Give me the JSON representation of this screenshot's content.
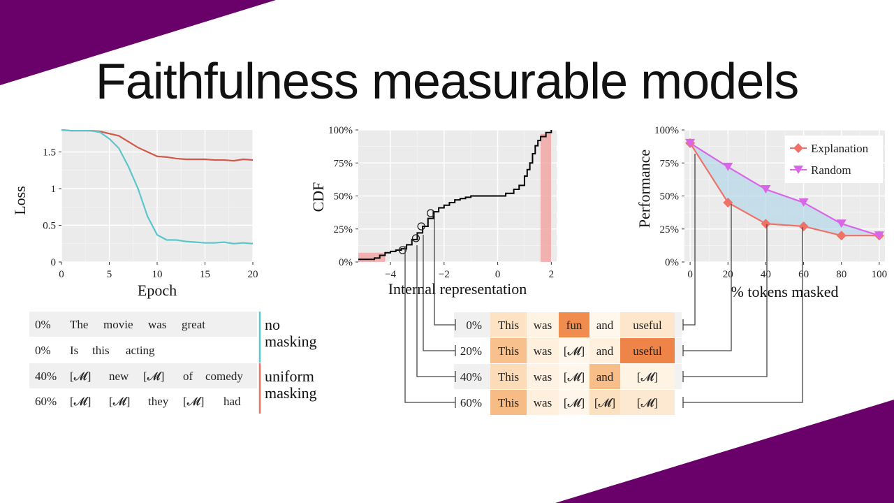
{
  "slide": {
    "title": "Faithfulness measurable models",
    "accent_color": "#6a006a"
  },
  "chart_data": [
    {
      "type": "line",
      "xlabel": "Epoch",
      "ylabel": "Loss",
      "xlim": [
        0,
        20
      ],
      "ylim": [
        0,
        1.8
      ],
      "xticks": [
        0,
        5,
        10,
        15,
        20
      ],
      "yticks": [
        {
          "v": 0,
          "label": "0"
        },
        {
          "v": 0.5,
          "label": "0.5"
        },
        {
          "v": 1,
          "label": "1"
        },
        {
          "v": 1.5,
          "label": "1.5"
        }
      ],
      "grid": true,
      "series": [
        {
          "color": "#d1584a",
          "x": [
            0,
            1,
            2,
            3,
            4,
            5,
            6,
            7,
            8,
            9,
            10,
            11,
            12,
            13,
            14,
            15,
            16,
            17,
            18,
            19,
            20
          ],
          "values": [
            1.8,
            1.79,
            1.79,
            1.79,
            1.78,
            1.75,
            1.72,
            1.64,
            1.56,
            1.5,
            1.44,
            1.43,
            1.41,
            1.4,
            1.4,
            1.4,
            1.39,
            1.39,
            1.38,
            1.4,
            1.39
          ]
        },
        {
          "color": "#5bc6cc",
          "x": [
            0,
            1,
            2,
            3,
            4,
            5,
            6,
            7,
            8,
            9,
            10,
            11,
            12,
            13,
            14,
            15,
            16,
            17,
            18,
            19,
            20
          ],
          "values": [
            1.8,
            1.79,
            1.79,
            1.79,
            1.77,
            1.68,
            1.55,
            1.3,
            1.0,
            0.62,
            0.37,
            0.3,
            0.3,
            0.28,
            0.27,
            0.26,
            0.26,
            0.27,
            0.25,
            0.26,
            0.25
          ]
        }
      ]
    },
    {
      "type": "line",
      "xlabel": "Internal representation",
      "ylabel": "CDF",
      "xlim": [
        -5.2,
        2.2
      ],
      "ylim": [
        0,
        1
      ],
      "xticks": [
        {
          "v": -4,
          "label": "−4"
        },
        {
          "v": -2,
          "label": "−2"
        },
        {
          "v": 0,
          "label": "0"
        },
        {
          "v": 2,
          "label": "2"
        }
      ],
      "yticks": [
        {
          "v": 0,
          "label": "0%"
        },
        {
          "v": 0.25,
          "label": "25%"
        },
        {
          "v": 0.5,
          "label": "50%"
        },
        {
          "v": 0.75,
          "label": "75%"
        },
        {
          "v": 1,
          "label": "100%"
        }
      ],
      "grid": true,
      "shaded_regions": [
        {
          "from": -5.2,
          "to": -4.2,
          "color": "#f4a3a3"
        },
        {
          "from": 1.6,
          "to": 2.0,
          "color": "#f4a3a3"
        }
      ],
      "series": [
        {
          "color": "#000000",
          "x": [
            -5.2,
            -4.8,
            -4.6,
            -4.4,
            -4.2,
            -4.0,
            -3.8,
            -3.6,
            -3.4,
            -3.2,
            -3.0,
            -2.8,
            -2.6,
            -2.4,
            -2.2,
            -2.0,
            -1.8,
            -1.6,
            -1.4,
            -1.2,
            -1.0,
            -0.5,
            0.0,
            0.3,
            0.6,
            0.8,
            1.0,
            1.1,
            1.2,
            1.3,
            1.4,
            1.5,
            1.6,
            1.8,
            2.0
          ],
          "values": [
            0.02,
            0.02,
            0.03,
            0.05,
            0.07,
            0.08,
            0.09,
            0.1,
            0.13,
            0.17,
            0.22,
            0.27,
            0.33,
            0.38,
            0.41,
            0.43,
            0.45,
            0.47,
            0.48,
            0.49,
            0.5,
            0.5,
            0.5,
            0.52,
            0.55,
            0.58,
            0.65,
            0.7,
            0.75,
            0.82,
            0.88,
            0.92,
            0.95,
            0.98,
            1.0
          ]
        }
      ],
      "markers": [
        {
          "x": -3.55,
          "y": 0.09
        },
        {
          "x": -3.05,
          "y": 0.18
        },
        {
          "x": -2.85,
          "y": 0.27
        },
        {
          "x": -2.5,
          "y": 0.37
        }
      ]
    },
    {
      "type": "line",
      "xlabel": "% tokens masked",
      "ylabel": "Performance",
      "xlim": [
        -3,
        103
      ],
      "ylim": [
        0,
        1
      ],
      "xticks": [
        0,
        20,
        40,
        60,
        80,
        100
      ],
      "yticks": [
        {
          "v": 0,
          "label": "0%"
        },
        {
          "v": 0.25,
          "label": "25%"
        },
        {
          "v": 0.5,
          "label": "50%"
        },
        {
          "v": 0.75,
          "label": "75%"
        },
        {
          "v": 1,
          "label": "100%"
        }
      ],
      "grid": true,
      "legend_position": "top-right",
      "fill_between_color": "#aad4e6",
      "series": [
        {
          "name": "Explanation",
          "color": "#f07167",
          "marker": "diamond",
          "x": [
            0,
            20,
            40,
            60,
            80,
            100
          ],
          "values": [
            0.9,
            0.45,
            0.29,
            0.27,
            0.2,
            0.2
          ]
        },
        {
          "name": "Random",
          "color": "#d966e8",
          "marker": "triangle-down",
          "x": [
            0,
            20,
            40,
            60,
            80,
            100
          ],
          "values": [
            0.9,
            0.72,
            0.55,
            0.45,
            0.29,
            0.2
          ]
        }
      ]
    }
  ],
  "masking_table": {
    "groups": [
      {
        "label_lines": [
          "no",
          "masking"
        ],
        "bar_color": "#5bc6cc",
        "rows": [
          {
            "pct": "0%",
            "tokens": [
              "The",
              "movie",
              "was",
              "great"
            ],
            "shaded": true
          },
          {
            "pct": "0%",
            "tokens": [
              "Is",
              "this",
              "acting"
            ],
            "shaded": false
          }
        ]
      },
      {
        "label_lines": [
          "uniform",
          "masking"
        ],
        "bar_color": "#f07167",
        "rows": [
          {
            "pct": "40%",
            "tokens": [
              "[𝓜]",
              "new",
              "[𝓜]",
              "of",
              "comedy"
            ],
            "shaded": true
          },
          {
            "pct": "60%",
            "tokens": [
              "[𝓜]",
              "[𝓜]",
              "they",
              "[𝓜]",
              "had"
            ],
            "shaded": false
          }
        ]
      }
    ]
  },
  "explanation_table": {
    "rows": [
      {
        "pct": "0%",
        "tokens": [
          {
            "text": "This",
            "color": "#fde3c4"
          },
          {
            "text": "was",
            "color": "#fff3e4"
          },
          {
            "text": "fun",
            "color": "#f08d4e"
          },
          {
            "text": "and",
            "color": "#fff6ec"
          },
          {
            "text": "useful",
            "color": "#fde6cc"
          },
          {
            "text": "",
            "color": "#f2f2f2"
          }
        ]
      },
      {
        "pct": "20%",
        "tokens": [
          {
            "text": "This",
            "color": "#f8c08d"
          },
          {
            "text": "was",
            "color": "#fff0dd"
          },
          {
            "text": "[𝓜]",
            "color": "#fff6ec"
          },
          {
            "text": "and",
            "color": "#fff1de"
          },
          {
            "text": "useful",
            "color": "#ef8448"
          },
          {
            "text": "",
            "color": "#f2f2f2"
          }
        ]
      },
      {
        "pct": "40%",
        "tokens": [
          {
            "text": "This",
            "color": "#fcdcb8"
          },
          {
            "text": "was",
            "color": "#fff2e3"
          },
          {
            "text": "[𝓜]",
            "color": "#fff6ec"
          },
          {
            "text": "and",
            "color": "#f8be8a"
          },
          {
            "text": "[𝓜]",
            "color": "#fff3e4"
          },
          {
            "text": "",
            "color": "#f2f2f2"
          }
        ]
      },
      {
        "pct": "60%",
        "tokens": [
          {
            "text": "This",
            "color": "#f7bb85"
          },
          {
            "text": "was",
            "color": "#fff0de"
          },
          {
            "text": "[𝓜]",
            "color": "#fff5ea"
          },
          {
            "text": "[𝓜]",
            "color": "#fce1c0"
          },
          {
            "text": "[𝓜]",
            "color": "#fde9d2"
          },
          {
            "text": "",
            "color": "#ffffff"
          }
        ]
      }
    ]
  }
}
